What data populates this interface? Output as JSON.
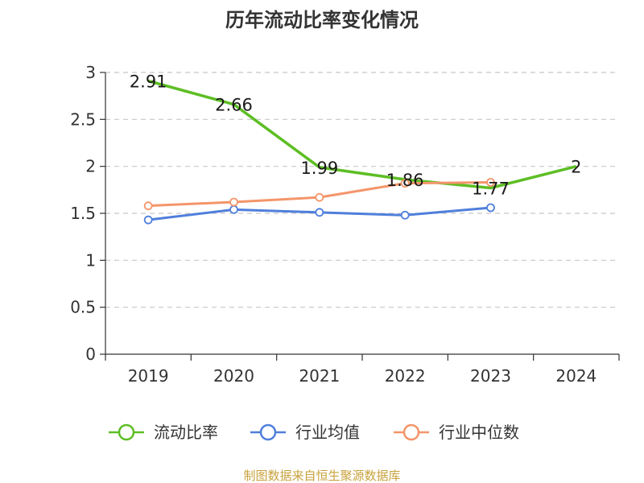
{
  "chart_data": {
    "type": "line",
    "title": "历年流动比率变化情况",
    "categories": [
      "2019",
      "2020",
      "2021",
      "2022",
      "2023",
      "2024"
    ],
    "ylim": [
      0,
      3
    ],
    "yticks": [
      "0",
      "0.5",
      "1",
      "1.5",
      "2",
      "2.5",
      "3"
    ],
    "grid": true,
    "legend_position": "bottom",
    "series": [
      {
        "name": "流动比率",
        "color": "#5dbe24",
        "values": [
          2.91,
          2.66,
          1.99,
          1.86,
          1.77,
          2.0
        ],
        "labels": [
          "2.91",
          "2.66",
          "1.99",
          "1.86",
          "1.77",
          "2"
        ],
        "markers": false
      },
      {
        "name": "行业均值",
        "color": "#4f7fdb",
        "values": [
          1.43,
          1.54,
          1.51,
          1.48,
          1.56,
          null
        ],
        "markers": true
      },
      {
        "name": "行业中位数",
        "color": "#f4956a",
        "values": [
          1.58,
          1.62,
          1.67,
          1.82,
          1.83,
          null
        ],
        "markers": true
      }
    ]
  },
  "source": "制图数据来自恒生聚源数据库"
}
